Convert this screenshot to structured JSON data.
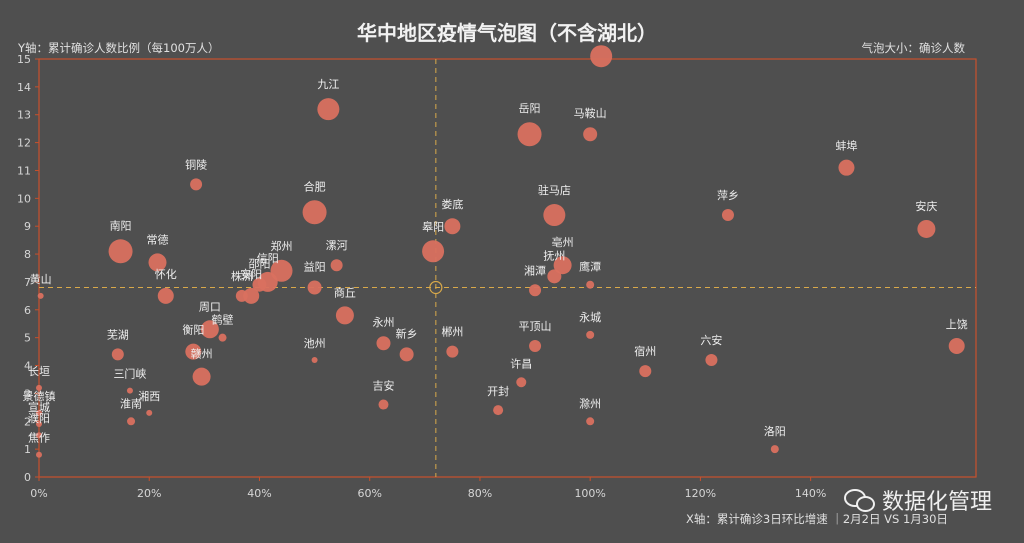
{
  "chart_data": {
    "type": "scatter",
    "title": "华中地区疫情气泡图（不含湖北）",
    "ylabel": "Y轴：累计确诊人数比例（每100万人）",
    "size_note": "气泡大小：确诊人数",
    "xlabel": "X轴：累计确诊3日环比增速 ｜2月2日 VS 1月30日",
    "xlim": [
      0,
      1.7
    ],
    "ylim": [
      0,
      15
    ],
    "x_ticks": [
      "0%",
      "20%",
      "40%",
      "60%",
      "80%",
      "100%",
      "120%",
      "140%"
    ],
    "y_ticks": [
      "0",
      "1",
      "2",
      "3",
      "4",
      "5",
      "6",
      "7",
      "8",
      "9",
      "10",
      "11",
      "12",
      "13",
      "14",
      "15"
    ],
    "reference_lines": {
      "x": 0.72,
      "y": 6.8
    },
    "bubble_color": "#d9705f",
    "points": [
      {
        "name": "九江",
        "x": 0.525,
        "y": 13.2,
        "size": 11
      },
      {
        "name": "岳阳",
        "x": 0.89,
        "y": 12.3,
        "size": 12
      },
      {
        "name": "马鞍山",
        "x": 1.0,
        "y": 12.3,
        "size": 7
      },
      {
        "name": "铜陵",
        "x": 0.285,
        "y": 10.5,
        "size": 6
      },
      {
        "name": "蚌埠",
        "x": 1.465,
        "y": 11.1,
        "size": 8
      },
      {
        "name": "合肥",
        "x": 0.5,
        "y": 9.5,
        "size": 12
      },
      {
        "name": "驻马店",
        "x": 0.935,
        "y": 9.4,
        "size": 11
      },
      {
        "name": "萍乡",
        "x": 1.25,
        "y": 9.4,
        "size": 6
      },
      {
        "name": "娄底",
        "x": 0.75,
        "y": 9.0,
        "size": 8
      },
      {
        "name": "安庆",
        "x": 1.61,
        "y": 8.9,
        "size": 9
      },
      {
        "name": "南阳",
        "x": 0.148,
        "y": 8.1,
        "size": 12
      },
      {
        "name": "常德",
        "x": 0.215,
        "y": 7.7,
        "size": 9
      },
      {
        "name": "皋阳",
        "x": 0.715,
        "y": 8.1,
        "size": 11
      },
      {
        "name": "亳州",
        "x": 0.95,
        "y": 7.6,
        "size": 9
      },
      {
        "name": "郑州",
        "x": 0.44,
        "y": 7.4,
        "size": 11
      },
      {
        "name": "漯河",
        "x": 0.54,
        "y": 7.6,
        "size": 6
      },
      {
        "name": "抚州",
        "x": 0.935,
        "y": 7.2,
        "size": 7
      },
      {
        "name": "信阳",
        "x": 0.415,
        "y": 7.0,
        "size": 10
      },
      {
        "name": "邵阳",
        "x": 0.4,
        "y": 6.9,
        "size": 7
      },
      {
        "name": "安阳",
        "x": 0.385,
        "y": 6.5,
        "size": 8
      },
      {
        "name": "益阳",
        "x": 0.5,
        "y": 6.8,
        "size": 7
      },
      {
        "name": "株洲",
        "x": 0.368,
        "y": 6.5,
        "size": 6
      },
      {
        "name": "湘潭",
        "x": 0.9,
        "y": 6.7,
        "size": 6
      },
      {
        "name": "鹰潭",
        "x": 1.0,
        "y": 6.9,
        "size": 4
      },
      {
        "name": "黄山",
        "x": 0.003,
        "y": 6.5,
        "size": 3
      },
      {
        "name": "怀化",
        "x": 0.23,
        "y": 6.5,
        "size": 8
      },
      {
        "name": "商丘",
        "x": 0.555,
        "y": 5.8,
        "size": 9
      },
      {
        "name": "周口",
        "x": 0.31,
        "y": 5.3,
        "size": 9
      },
      {
        "name": "鹤壁",
        "x": 0.333,
        "y": 5.0,
        "size": 4
      },
      {
        "name": "衡阳",
        "x": 0.28,
        "y": 4.5,
        "size": 8
      },
      {
        "name": "永州",
        "x": 0.625,
        "y": 4.8,
        "size": 7
      },
      {
        "name": "新乡",
        "x": 0.667,
        "y": 4.4,
        "size": 7
      },
      {
        "name": "郴州",
        "x": 0.75,
        "y": 4.5,
        "size": 6
      },
      {
        "name": "平顶山",
        "x": 0.9,
        "y": 4.7,
        "size": 6
      },
      {
        "name": "永城",
        "x": 1.0,
        "y": 5.1,
        "size": 4
      },
      {
        "name": "芜湖",
        "x": 0.143,
        "y": 4.4,
        "size": 6
      },
      {
        "name": "六安",
        "x": 1.22,
        "y": 4.2,
        "size": 6
      },
      {
        "name": "宿州",
        "x": 1.1,
        "y": 3.8,
        "size": 6
      },
      {
        "name": "池州",
        "x": 0.5,
        "y": 4.2,
        "size": 3
      },
      {
        "name": "赣州",
        "x": 0.295,
        "y": 3.6,
        "size": 9
      },
      {
        "name": "许昌",
        "x": 0.875,
        "y": 3.4,
        "size": 5
      },
      {
        "name": "三门峡",
        "x": 0.165,
        "y": 3.1,
        "size": 3
      },
      {
        "name": "湘西",
        "x": 0.2,
        "y": 2.3,
        "size": 3
      },
      {
        "name": "淮南",
        "x": 0.167,
        "y": 2.0,
        "size": 4
      },
      {
        "name": "长垣",
        "x": 0.0,
        "y": 3.2,
        "size": 3
      },
      {
        "name": "吉安",
        "x": 0.625,
        "y": 2.6,
        "size": 5
      },
      {
        "name": "开封",
        "x": 0.833,
        "y": 2.4,
        "size": 5
      },
      {
        "name": "滁州",
        "x": 1.0,
        "y": 2.0,
        "size": 4
      },
      {
        "name": "上饶",
        "x": 1.665,
        "y": 4.7,
        "size": 8
      },
      {
        "name": "洛阳",
        "x": 1.335,
        "y": 1.0,
        "size": 4
      },
      {
        "name": "景德镇",
        "x": 0.0,
        "y": 2.3,
        "size": 3
      },
      {
        "name": "宣城",
        "x": 0.0,
        "y": 1.9,
        "size": 3
      },
      {
        "name": "濮阳",
        "x": 0.0,
        "y": 1.5,
        "size": 3
      },
      {
        "name": "焦作",
        "x": 0.0,
        "y": 0.8,
        "size": 3
      },
      {
        "name": "",
        "x": 1.02,
        "y": 15.1,
        "size": 11
      }
    ]
  },
  "watermark": {
    "text": "数据化管理",
    "icon": "wechat-icon"
  }
}
